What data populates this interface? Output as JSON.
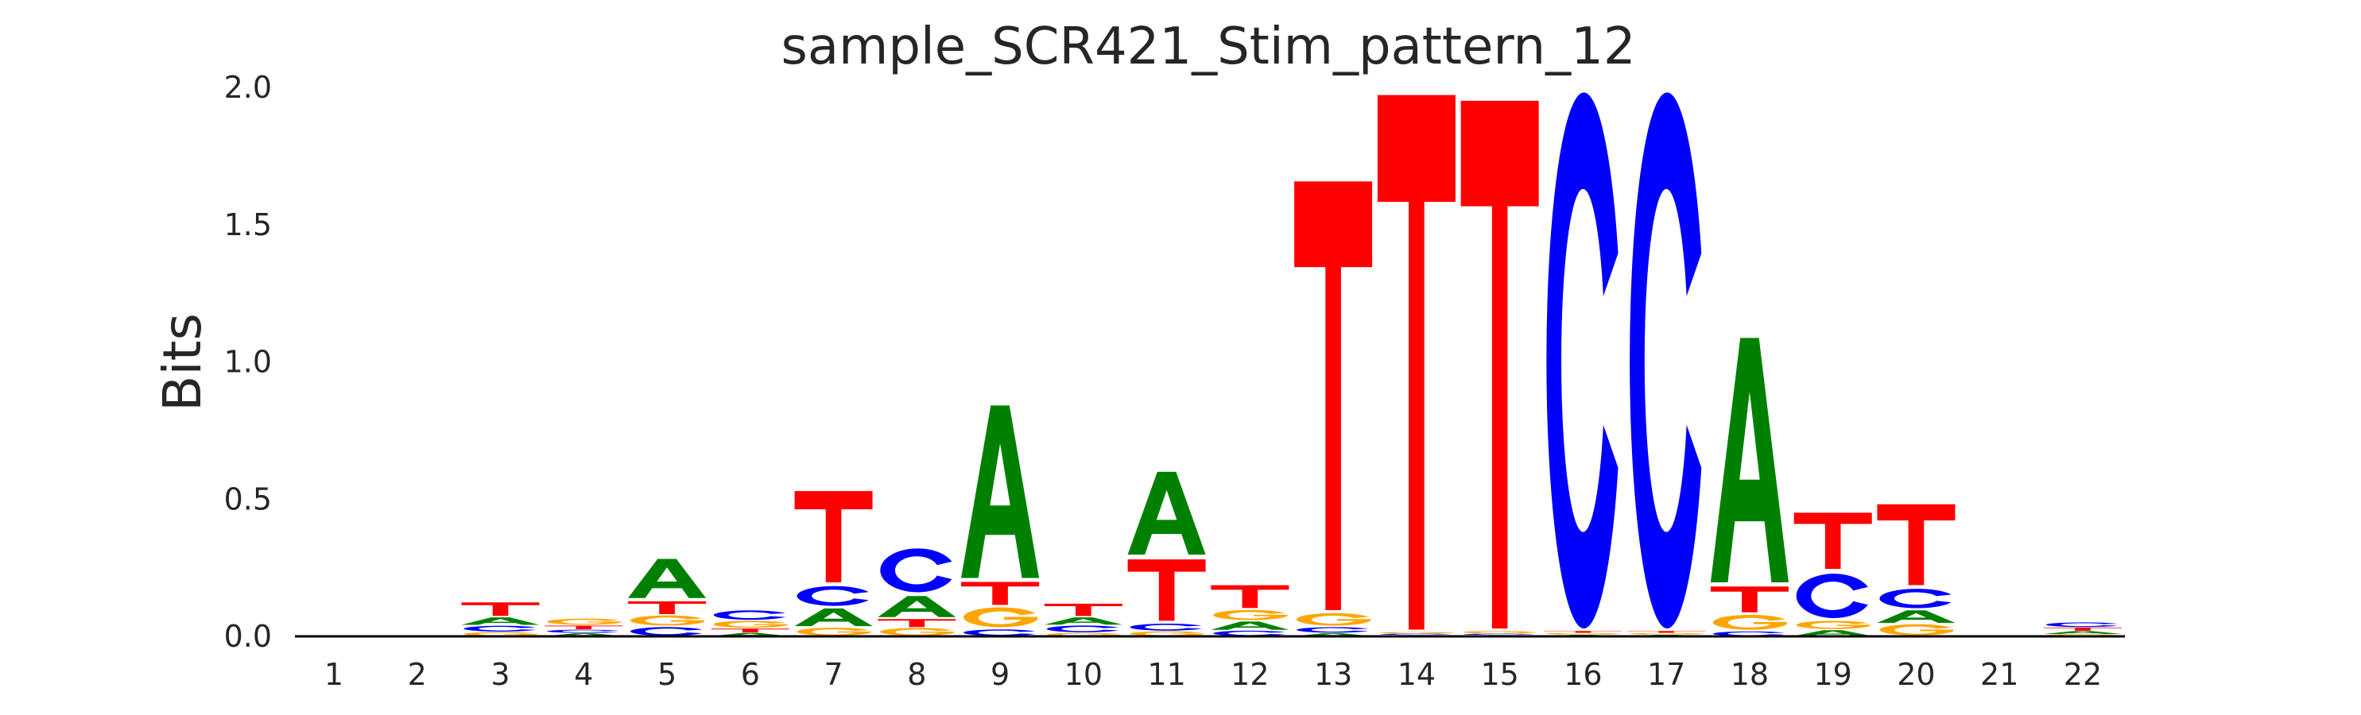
{
  "chart_data": {
    "type": "sequence-logo",
    "title": "sample_SCR421_Stim_pattern_12",
    "xlabel": "",
    "ylabel": "Bits",
    "ylim": [
      0,
      2.0
    ],
    "yticks": [
      "0.0",
      "0.5",
      "1.0",
      "1.5",
      "2.0"
    ],
    "ytick_values": [
      0,
      0.5,
      1.0,
      1.5,
      2.0
    ],
    "grid": false,
    "colors": {
      "A": "#008000",
      "C": "#0000ff",
      "G": "#ffa500",
      "T": "#ff0000"
    },
    "positions": [
      {
        "pos": "1",
        "A": 0.0,
        "C": 0.0,
        "G": 0.0,
        "T": 0.0
      },
      {
        "pos": "2",
        "A": 0.0,
        "C": 0.0,
        "G": 0.0,
        "T": 0.0
      },
      {
        "pos": "3",
        "A": 0.031,
        "C": 0.024,
        "G": 0.016,
        "T": 0.056
      },
      {
        "pos": "4",
        "A": 0.012,
        "C": 0.013,
        "G": 0.026,
        "T": 0.015
      },
      {
        "pos": "5",
        "A": 0.16,
        "C": 0.036,
        "G": 0.042,
        "T": 0.053
      },
      {
        "pos": "6",
        "A": 0.013,
        "C": 0.039,
        "G": 0.029,
        "T": 0.016
      },
      {
        "pos": "7",
        "A": 0.073,
        "C": 0.082,
        "G": 0.033,
        "T": 0.35
      },
      {
        "pos": "8",
        "A": 0.087,
        "C": 0.177,
        "G": 0.032,
        "T": 0.033
      },
      {
        "pos": "9",
        "A": 0.646,
        "C": 0.027,
        "G": 0.082,
        "T": 0.095
      },
      {
        "pos": "10",
        "A": 0.03,
        "C": 0.028,
        "G": 0.013,
        "T": 0.051
      },
      {
        "pos": "11",
        "A": 0.319,
        "C": 0.029,
        "G": 0.019,
        "T": 0.241
      },
      {
        "pos": "12",
        "A": 0.034,
        "C": 0.022,
        "G": 0.042,
        "T": 0.094
      },
      {
        "pos": "13",
        "A": 0.012,
        "C": 0.023,
        "G": 0.052,
        "T": 1.579
      },
      {
        "pos": "14",
        "A": 0.005,
        "C": 0.005,
        "G": 0.006,
        "T": 1.965
      },
      {
        "pos": "15",
        "A": 0.005,
        "C": 0.005,
        "G": 0.01,
        "T": 1.94
      },
      {
        "pos": "16",
        "A": 0.006,
        "C": 1.97,
        "G": 0.007,
        "T": 0.007
      },
      {
        "pos": "17",
        "A": 0.006,
        "C": 1.97,
        "G": 0.007,
        "T": 0.007
      },
      {
        "pos": "18",
        "A": 0.908,
        "C": 0.019,
        "G": 0.062,
        "T": 0.107
      },
      {
        "pos": "19",
        "A": 0.024,
        "C": 0.179,
        "G": 0.034,
        "T": 0.222
      },
      {
        "pos": "20",
        "A": 0.052,
        "C": 0.08,
        "G": 0.046,
        "T": 0.312
      },
      {
        "pos": "21",
        "A": 0.001,
        "C": 0.001,
        "G": 0.001,
        "T": 0.001
      },
      {
        "pos": "22",
        "A": 0.012,
        "C": 0.019,
        "G": 0.008,
        "T": 0.013
      }
    ]
  }
}
